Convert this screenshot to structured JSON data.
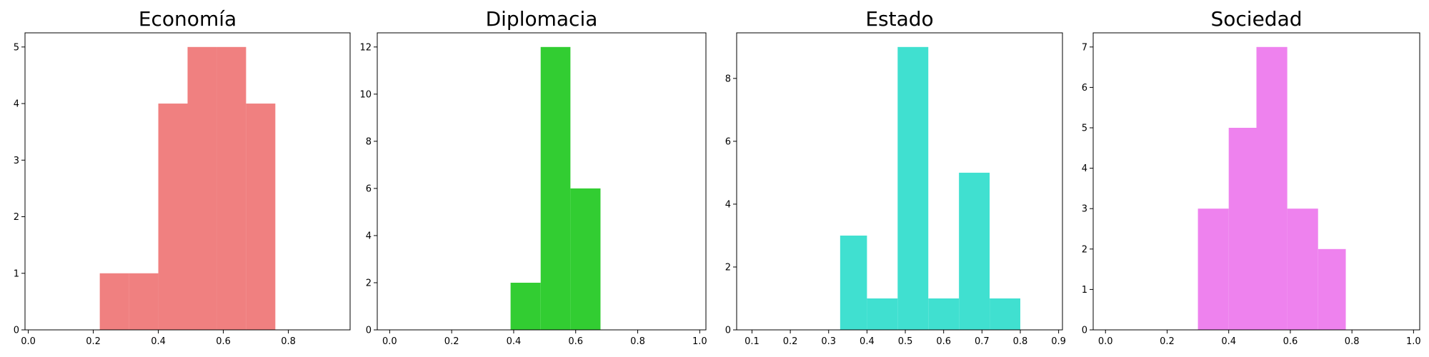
{
  "chart_data": [
    {
      "type": "bar",
      "title": "Economía",
      "color": "#F08080",
      "xlim": [
        -0.01,
        0.99
      ],
      "ylim": [
        0,
        5.25
      ],
      "xticks": [
        0.0,
        0.2,
        0.4,
        0.6,
        0.8
      ],
      "xtick_labels": [
        "0.0",
        "0.2",
        "0.4",
        "0.6",
        "0.8"
      ],
      "yticks": [
        0,
        1,
        2,
        3,
        4,
        5
      ],
      "ytick_labels": [
        "0",
        "1",
        "2",
        "3",
        "4",
        "5"
      ],
      "bins": [
        {
          "x0": 0.22,
          "x1": 0.31,
          "count": 1
        },
        {
          "x0": 0.31,
          "x1": 0.4,
          "count": 1
        },
        {
          "x0": 0.4,
          "x1": 0.49,
          "count": 4
        },
        {
          "x0": 0.49,
          "x1": 0.58,
          "count": 5
        },
        {
          "x0": 0.58,
          "x1": 0.67,
          "count": 5
        },
        {
          "x0": 0.67,
          "x1": 0.76,
          "count": 4
        }
      ]
    },
    {
      "type": "bar",
      "title": "Diplomacia",
      "color": "#32CD32",
      "xlim": [
        -0.04,
        1.02
      ],
      "ylim": [
        0,
        12.6
      ],
      "xticks": [
        0.0,
        0.2,
        0.4,
        0.6,
        0.8,
        1.0
      ],
      "xtick_labels": [
        "0.0",
        "0.2",
        "0.4",
        "0.6",
        "0.8",
        "1.0"
      ],
      "yticks": [
        0,
        2,
        4,
        6,
        8,
        10,
        12
      ],
      "ytick_labels": [
        "0",
        "2",
        "4",
        "6",
        "8",
        "10",
        "12"
      ],
      "bins": [
        {
          "x0": 0.39,
          "x1": 0.487,
          "count": 2
        },
        {
          "x0": 0.487,
          "x1": 0.583,
          "count": 12
        },
        {
          "x0": 0.583,
          "x1": 0.68,
          "count": 6
        }
      ]
    },
    {
      "type": "bar",
      "title": "Estado",
      "color": "#40E0D0",
      "xlim": [
        0.06,
        0.91
      ],
      "ylim": [
        0,
        9.45
      ],
      "xticks": [
        0.1,
        0.2,
        0.3,
        0.4,
        0.5,
        0.6,
        0.7,
        0.8,
        0.9
      ],
      "xtick_labels": [
        "0.1",
        "0.2",
        "0.3",
        "0.4",
        "0.5",
        "0.6",
        "0.7",
        "0.8",
        "0.9"
      ],
      "yticks": [
        0,
        2,
        4,
        6,
        8
      ],
      "ytick_labels": [
        "0",
        "2",
        "4",
        "6",
        "8"
      ],
      "bins": [
        {
          "x0": 0.33,
          "x1": 0.4,
          "count": 3
        },
        {
          "x0": 0.4,
          "x1": 0.48,
          "count": 1
        },
        {
          "x0": 0.48,
          "x1": 0.56,
          "count": 9
        },
        {
          "x0": 0.56,
          "x1": 0.64,
          "count": 1
        },
        {
          "x0": 0.64,
          "x1": 0.72,
          "count": 5
        },
        {
          "x0": 0.72,
          "x1": 0.8,
          "count": 1
        }
      ]
    },
    {
      "type": "bar",
      "title": "Sociedad",
      "color": "#EE82EE",
      "xlim": [
        -0.04,
        1.02
      ],
      "ylim": [
        0,
        7.35
      ],
      "xticks": [
        0.0,
        0.2,
        0.4,
        0.6,
        0.8,
        1.0
      ],
      "xtick_labels": [
        "0.0",
        "0.2",
        "0.4",
        "0.6",
        "0.8",
        "1.0"
      ],
      "yticks": [
        0,
        1,
        2,
        3,
        4,
        5,
        6,
        7
      ],
      "ytick_labels": [
        "0",
        "1",
        "2",
        "3",
        "4",
        "5",
        "6",
        "7"
      ],
      "bins": [
        {
          "x0": 0.3,
          "x1": 0.4,
          "count": 3
        },
        {
          "x0": 0.4,
          "x1": 0.49,
          "count": 5
        },
        {
          "x0": 0.49,
          "x1": 0.59,
          "count": 7
        },
        {
          "x0": 0.59,
          "x1": 0.69,
          "count": 3
        },
        {
          "x0": 0.69,
          "x1": 0.78,
          "count": 2
        }
      ]
    }
  ]
}
